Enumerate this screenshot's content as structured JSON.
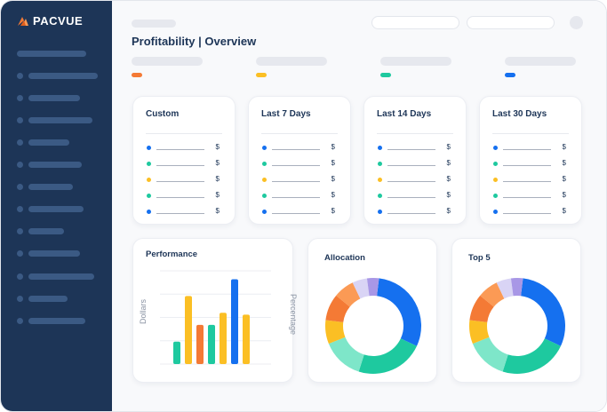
{
  "app": {
    "logo_text": "PACVUE"
  },
  "header": {
    "title": "Profitability  |  Overview"
  },
  "legend_colors": [
    "#f47a35",
    "#fbbf24",
    "#1ec99f",
    "#1570ef"
  ],
  "summary_cards": [
    {
      "title": "Custom",
      "rows": [
        {
          "dot_color": "#1570ef",
          "currency": "$"
        },
        {
          "dot_color": "#1ec99f",
          "currency": "$"
        },
        {
          "dot_color": "#fbbf24",
          "currency": "$"
        },
        {
          "dot_color": "#1ec99f",
          "currency": "$"
        },
        {
          "dot_color": "#1570ef",
          "currency": "$"
        }
      ]
    },
    {
      "title": "Last 7 Days",
      "rows": [
        {
          "dot_color": "#1570ef",
          "currency": "$"
        },
        {
          "dot_color": "#1ec99f",
          "currency": "$"
        },
        {
          "dot_color": "#fbbf24",
          "currency": "$"
        },
        {
          "dot_color": "#1ec99f",
          "currency": "$"
        },
        {
          "dot_color": "#1570ef",
          "currency": "$"
        }
      ]
    },
    {
      "title": "Last 14 Days",
      "rows": [
        {
          "dot_color": "#1570ef",
          "currency": "$"
        },
        {
          "dot_color": "#1ec99f",
          "currency": "$"
        },
        {
          "dot_color": "#fbbf24",
          "currency": "$"
        },
        {
          "dot_color": "#1ec99f",
          "currency": "$"
        },
        {
          "dot_color": "#1570ef",
          "currency": "$"
        }
      ]
    },
    {
      "title": "Last 30 Days",
      "rows": [
        {
          "dot_color": "#1570ef",
          "currency": "$"
        },
        {
          "dot_color": "#1ec99f",
          "currency": "$"
        },
        {
          "dot_color": "#fbbf24",
          "currency": "$"
        },
        {
          "dot_color": "#1ec99f",
          "currency": "$"
        },
        {
          "dot_color": "#1570ef",
          "currency": "$"
        }
      ]
    }
  ],
  "performance": {
    "title": "Performance",
    "ylabel_left": "Dollars",
    "ylabel_right": "Percentage"
  },
  "allocation": {
    "title": "Allocation"
  },
  "top5": {
    "title": "Top 5"
  },
  "chart_data": [
    {
      "type": "bar",
      "title": "Performance",
      "ylabel": "Dollars",
      "ylabel_right": "Percentage",
      "grid": true,
      "values": [
        24,
        73,
        42,
        42,
        55,
        91,
        53
      ],
      "colors": [
        "#1ec99f",
        "#fbbf24",
        "#f47a35",
        "#1ec99f",
        "#fbbf24",
        "#1570ef",
        "#fbbf24"
      ],
      "ylim": [
        0,
        100
      ]
    },
    {
      "type": "pie",
      "title": "Allocation",
      "values": [
        30,
        23,
        14,
        8,
        9,
        7,
        5,
        4
      ],
      "colors": [
        "#1570ef",
        "#1ec99f",
        "#7ee6c9",
        "#fbbf24",
        "#f47a35",
        "#fb9a55",
        "#d9d4f5",
        "#a897e6"
      ]
    },
    {
      "type": "pie",
      "title": "Top 5",
      "values": [
        30,
        23,
        14,
        8,
        9,
        7,
        5,
        4
      ],
      "colors": [
        "#1570ef",
        "#1ec99f",
        "#7ee6c9",
        "#fbbf24",
        "#f47a35",
        "#fb9a55",
        "#d9d4f5",
        "#a897e6"
      ]
    }
  ]
}
